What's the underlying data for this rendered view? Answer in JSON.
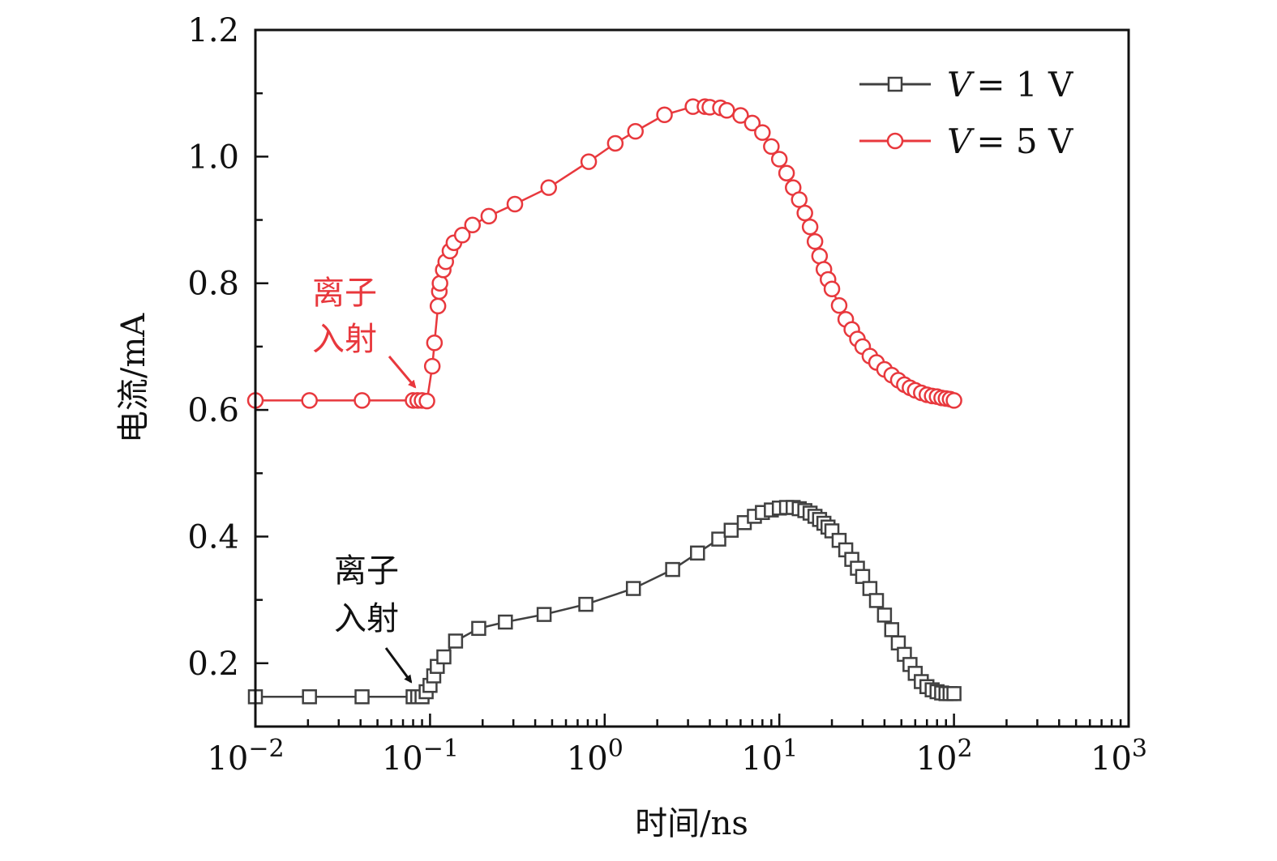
{
  "chart_data": {
    "type": "line",
    "title": "",
    "xlabel": "时间/ns",
    "ylabel": "电流/mA",
    "xscale": "log",
    "xlim": [
      0.01,
      1000
    ],
    "ylim": [
      0.1,
      1.2
    ],
    "grid": false,
    "legend_position": "top-right",
    "x_ticks": [
      {
        "base": "10",
        "exp": "−2",
        "value": 0.01
      },
      {
        "base": "10",
        "exp": "−1",
        "value": 0.1
      },
      {
        "base": "10",
        "exp": "0",
        "value": 1
      },
      {
        "base": "10",
        "exp": "1",
        "value": 10
      },
      {
        "base": "10",
        "exp": "2",
        "value": 100
      },
      {
        "base": "10",
        "exp": "3",
        "value": 1000
      }
    ],
    "y_ticks": [
      "0.2",
      "0.4",
      "0.6",
      "0.8",
      "1.0",
      "1.2"
    ],
    "series": [
      {
        "name": "V = 1 V",
        "legend": {
          "italic": "V",
          "rest": "= 1 V"
        },
        "color": "#404040",
        "marker": "square",
        "x": [
          0.01,
          0.0204,
          0.0408,
          0.08,
          0.085,
          0.09,
          0.095,
          0.1,
          0.105,
          0.11,
          0.12,
          0.14,
          0.19,
          0.27,
          0.45,
          0.78,
          1.46,
          2.45,
          3.4,
          4.5,
          5.3,
          6.3,
          7.2,
          8,
          9,
          10,
          11,
          12,
          13,
          14,
          15,
          16,
          17,
          18,
          19,
          20,
          22,
          24,
          26,
          28,
          30,
          33,
          36,
          40,
          44,
          48,
          52,
          56,
          60,
          65,
          70,
          75,
          80,
          85,
          90,
          95,
          100
        ],
        "y": [
          0.147,
          0.147,
          0.147,
          0.147,
          0.147,
          0.147,
          0.155,
          0.165,
          0.18,
          0.195,
          0.21,
          0.235,
          0.255,
          0.265,
          0.277,
          0.293,
          0.318,
          0.348,
          0.374,
          0.396,
          0.41,
          0.422,
          0.432,
          0.438,
          0.442,
          0.445,
          0.446,
          0.446,
          0.444,
          0.441,
          0.437,
          0.432,
          0.427,
          0.421,
          0.415,
          0.409,
          0.394,
          0.379,
          0.364,
          0.35,
          0.337,
          0.318,
          0.299,
          0.276,
          0.253,
          0.232,
          0.214,
          0.198,
          0.184,
          0.171,
          0.163,
          0.158,
          0.155,
          0.153,
          0.152,
          0.152,
          0.152
        ]
      },
      {
        "name": "V = 5 V",
        "legend": {
          "italic": "V",
          "rest": "= 5 V"
        },
        "color": "#e8383d",
        "marker": "circle",
        "x": [
          0.01,
          0.0204,
          0.0408,
          0.08,
          0.085,
          0.09,
          0.096,
          0.103,
          0.106,
          0.111,
          0.113,
          0.114,
          0.119,
          0.123,
          0.13,
          0.137,
          0.153,
          0.175,
          0.217,
          0.306,
          0.478,
          0.81,
          1.15,
          1.5,
          2.2,
          3.2,
          3.75,
          4,
          4.6,
          5,
          6,
          7,
          8,
          9,
          10,
          11,
          12,
          13,
          14,
          15,
          16,
          17,
          18,
          19,
          20,
          22,
          24,
          26,
          28,
          30,
          33,
          36,
          40,
          44,
          48,
          52,
          56,
          60,
          65,
          70,
          75,
          80,
          85,
          90,
          95,
          100
        ],
        "y": [
          0.615,
          0.615,
          0.615,
          0.615,
          0.615,
          0.615,
          0.614,
          0.669,
          0.706,
          0.764,
          0.787,
          0.8,
          0.821,
          0.834,
          0.851,
          0.864,
          0.876,
          0.892,
          0.906,
          0.925,
          0.951,
          0.992,
          1.021,
          1.04,
          1.066,
          1.079,
          1.079,
          1.078,
          1.077,
          1.073,
          1.065,
          1.053,
          1.038,
          1.016,
          0.996,
          0.974,
          0.951,
          0.932,
          0.911,
          0.889,
          0.866,
          0.843,
          0.822,
          0.806,
          0.791,
          0.765,
          0.743,
          0.727,
          0.712,
          0.7,
          0.685,
          0.675,
          0.664,
          0.655,
          0.647,
          0.64,
          0.635,
          0.631,
          0.627,
          0.624,
          0.622,
          0.621,
          0.619,
          0.618,
          0.617,
          0.615
        ]
      }
    ],
    "annotations": [
      {
        "lines": [
          "离子",
          "入射"
        ],
        "color": "#e8383d",
        "points_to": {
          "x": 0.093,
          "y": 0.615
        }
      },
      {
        "lines": [
          "离子",
          "入射"
        ],
        "color": "#111111",
        "points_to": {
          "x": 0.093,
          "y": 0.15
        }
      }
    ]
  }
}
